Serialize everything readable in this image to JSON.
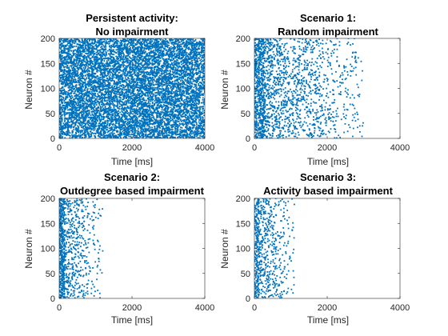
{
  "figure": {
    "marker_color": "#0072bd",
    "axis_color": "#262626",
    "background": "#ffffff"
  },
  "chart_data": [
    {
      "type": "scatter",
      "title_lines": [
        "Persistent activity:",
        "No impairment"
      ],
      "xlabel": "Time [ms]",
      "ylabel": "Neuron #",
      "xlim": [
        0,
        4000
      ],
      "ylim": [
        0,
        200
      ],
      "xticks": [
        "0",
        "2000",
        "4000"
      ],
      "yticks": [
        "0",
        "50",
        "100",
        "150",
        "200"
      ],
      "grid": false,
      "series": [
        {
          "color": "#0072bd",
          "points_by_neuron_time_range": [
            {
              "neurons": [
                1,
                200
              ],
              "t_start": 0,
              "t_end": 4000,
              "density": "dense"
            }
          ]
        }
      ]
    },
    {
      "type": "scatter",
      "title_lines": [
        "Scenario 1:",
        "Random impairment"
      ],
      "xlabel": "Time [ms]",
      "ylabel": "Neuron #",
      "xlim": [
        0,
        4000
      ],
      "ylim": [
        0,
        200
      ],
      "xticks": [
        "0",
        "2000",
        "4000"
      ],
      "yticks": [
        "0",
        "50",
        "100",
        "150",
        "200"
      ],
      "grid": false,
      "series": [
        {
          "color": "#0072bd",
          "points_by_neuron_time_range": [
            {
              "neurons": [
                1,
                200
              ],
              "t_start": 0,
              "t_end": 300,
              "density": "dense"
            },
            {
              "neurons": [
                1,
                200
              ],
              "t_start": 300,
              "t_end": 3000,
              "density": "sparse"
            }
          ]
        }
      ]
    },
    {
      "type": "scatter",
      "title_lines": [
        "Scenario 2:",
        "Outdegree based impairment"
      ],
      "xlabel": "Time [ms]",
      "ylabel": "Neuron #",
      "xlim": [
        0,
        4000
      ],
      "ylim": [
        0,
        200
      ],
      "xticks": [
        "0",
        "2000",
        "4000"
      ],
      "yticks": [
        "0",
        "50",
        "100",
        "150",
        "200"
      ],
      "grid": false,
      "series": [
        {
          "color": "#0072bd",
          "points_by_neuron_time_range": [
            {
              "neurons": [
                1,
                200
              ],
              "t_start": 0,
              "t_end": 150,
              "density": "dense"
            },
            {
              "neurons": [
                1,
                200
              ],
              "t_start": 150,
              "t_end": 1200,
              "density": "sparse"
            }
          ]
        }
      ]
    },
    {
      "type": "scatter",
      "title_lines": [
        "Scenario 3:",
        "Activity based impairment"
      ],
      "xlabel": "Time [ms]",
      "ylabel": "Neuron #",
      "xlim": [
        0,
        4000
      ],
      "ylim": [
        0,
        200
      ],
      "xticks": [
        "0",
        "2000",
        "4000"
      ],
      "yticks": [
        "0",
        "50",
        "100",
        "150",
        "200"
      ],
      "grid": false,
      "series": [
        {
          "color": "#0072bd",
          "points_by_neuron_time_range": [
            {
              "neurons": [
                1,
                200
              ],
              "t_start": 0,
              "t_end": 120,
              "density": "dense"
            },
            {
              "neurons": [
                1,
                200
              ],
              "t_start": 120,
              "t_end": 1100,
              "density": "sparse"
            }
          ]
        }
      ]
    }
  ]
}
